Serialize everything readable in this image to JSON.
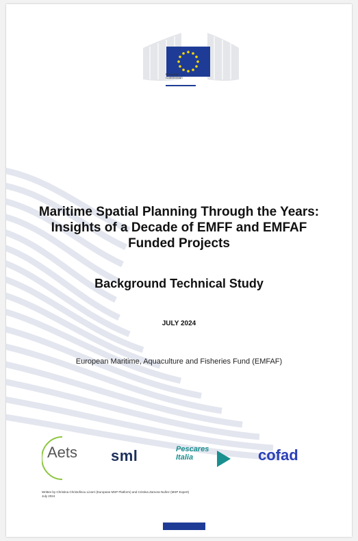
{
  "header": {
    "organisation_caption": "European\nCommission",
    "flag_color": "#1e3c96",
    "star_color": "#ffdd00"
  },
  "cover": {
    "title": "Maritime Spatial Planning Through the Years: Insights of a Decade of EMFF and EMFAF Funded Projects",
    "subtitle": "Background Technical Study",
    "date": "JULY 2024",
    "fund": "European Maritime, Aquaculture and Fisheries Fund (EMFAF)"
  },
  "partners": {
    "aets": "Aets",
    "sml": "sml",
    "pescares": "Pescares\nItalia",
    "cofad": "cofad"
  },
  "credit": "Written by Christina Christofinou Lizarri (European MSP Platform) and Cristina Zamora Nuñez (MSP Expert)\nJuly 2024",
  "colors": {
    "accent": "#1e3c96",
    "wave": "#e3e6ef"
  }
}
